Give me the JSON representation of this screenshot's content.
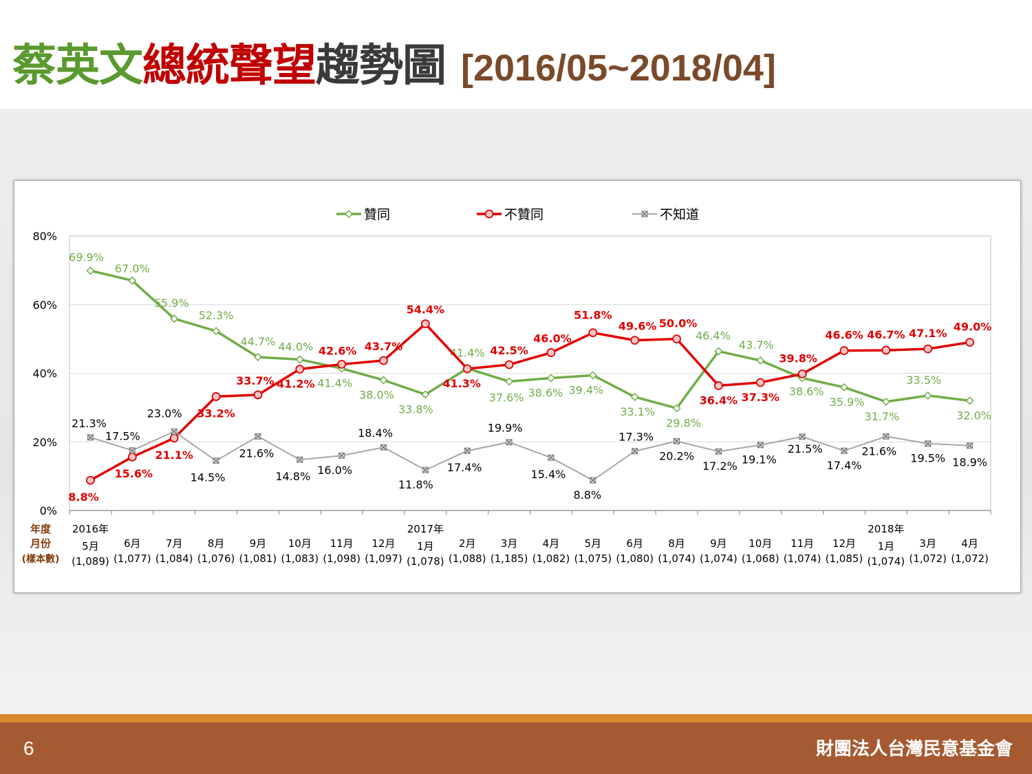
{
  "title": {
    "part1": "蔡英文",
    "part2": "總統聲望",
    "part3": "趨勢圖",
    "range": "[2016/05~2018/04]"
  },
  "colors": {
    "title_green": "#5a9a2e",
    "title_red": "#c00000",
    "title_dark": "#3a3a3a",
    "approve": "#70ad47",
    "disapprove": "#e00000",
    "unknown": "#a6a6a6",
    "footer": "#a65a32"
  },
  "footer": {
    "page": "6",
    "org": "財團法人台灣民意基金會"
  },
  "chart_data": {
    "type": "line",
    "ylim": [
      0,
      80
    ],
    "yticks": [
      "0%",
      "20%",
      "40%",
      "60%",
      "80%"
    ],
    "grid": true,
    "legend_position": "top",
    "row_labels": [
      "年度",
      "月份",
      "(樣本數)"
    ],
    "categories": [
      {
        "year": "2016年",
        "month": "5月",
        "n": "(1,089)"
      },
      {
        "year": "",
        "month": "6月",
        "n": "(1,077)"
      },
      {
        "year": "",
        "month": "7月",
        "n": "(1,084)"
      },
      {
        "year": "",
        "month": "8月",
        "n": "(1,076)"
      },
      {
        "year": "",
        "month": "9月",
        "n": "(1,081)"
      },
      {
        "year": "",
        "month": "10月",
        "n": "(1,083)"
      },
      {
        "year": "",
        "month": "11月",
        "n": "(1,098)"
      },
      {
        "year": "",
        "month": "12月",
        "n": "(1,097)"
      },
      {
        "year": "2017年",
        "month": "1月",
        "n": "(1,078)"
      },
      {
        "year": "",
        "month": "2月",
        "n": "(1,088)"
      },
      {
        "year": "",
        "month": "3月",
        "n": "(1,185)"
      },
      {
        "year": "",
        "month": "4月",
        "n": "(1,082)"
      },
      {
        "year": "",
        "month": "5月",
        "n": "(1,075)"
      },
      {
        "year": "",
        "month": "6月",
        "n": "(1,080)"
      },
      {
        "year": "",
        "month": "8月",
        "n": "(1,074)"
      },
      {
        "year": "",
        "month": "9月",
        "n": "(1,074)"
      },
      {
        "year": "",
        "month": "10月",
        "n": "(1,068)"
      },
      {
        "year": "",
        "month": "11月",
        "n": "(1,074)"
      },
      {
        "year": "",
        "month": "12月",
        "n": "(1,085)"
      },
      {
        "year": "2018年",
        "month": "1月",
        "n": "(1,074)"
      },
      {
        "year": "",
        "month": "3月",
        "n": "(1,072)"
      },
      {
        "year": "",
        "month": "4月",
        "n": "(1,072)"
      }
    ],
    "series": [
      {
        "name": "贊同",
        "color": "#70ad47",
        "marker": "diamond",
        "values": [
          69.9,
          67.0,
          55.9,
          52.3,
          44.7,
          44.0,
          41.4,
          38.0,
          33.8,
          41.4,
          37.6,
          38.6,
          39.4,
          33.1,
          29.8,
          46.4,
          43.7,
          38.6,
          35.9,
          31.7,
          33.5,
          32.0
        ],
        "labels": [
          "69.9%",
          "67.0%",
          "55.9%",
          "52.3%",
          "44.7%",
          "44.0%",
          "41.4%",
          "38.0%",
          "33.8%",
          "41.4%",
          "37.6%",
          "38.6%",
          "39.4%",
          "33.1%",
          "29.8%",
          "46.4%",
          "43.7%",
          "38.6%",
          "35.9%",
          "31.7%",
          "33.5%",
          "32.0%"
        ]
      },
      {
        "name": "不贊同",
        "color": "#e00000",
        "marker": "circle",
        "values": [
          8.8,
          15.6,
          21.1,
          33.2,
          33.7,
          41.2,
          42.6,
          43.7,
          54.4,
          41.3,
          42.5,
          46.0,
          51.8,
          49.6,
          50.0,
          36.4,
          37.3,
          39.8,
          46.6,
          46.7,
          47.1,
          49.0
        ],
        "labels": [
          "8.8%",
          "15.6%",
          "21.1%",
          "33.2%",
          "33.7%",
          "41.2%",
          "42.6%",
          "43.7%",
          "54.4%",
          "41.3%",
          "42.5%",
          "46.0%",
          "51.8%",
          "49.6%",
          "50.0%",
          "36.4%",
          "37.3%",
          "39.8%",
          "46.6%",
          "46.7%",
          "47.1%",
          "49.0%"
        ]
      },
      {
        "name": "不知道",
        "color": "#a6a6a6",
        "marker": "square-x",
        "values": [
          21.3,
          17.5,
          23.0,
          14.5,
          21.6,
          14.8,
          16.0,
          18.4,
          11.8,
          17.4,
          19.9,
          15.4,
          8.8,
          17.3,
          20.2,
          17.2,
          19.1,
          21.5,
          17.4,
          21.6,
          19.5,
          18.9
        ],
        "labels": [
          "21.3%",
          "17.5%",
          "23.0%",
          "14.5%",
          "21.6%",
          "14.8%",
          "16.0%",
          "18.4%",
          "11.8%",
          "17.4%",
          "19.9%",
          "15.4%",
          "8.8%",
          "17.3%",
          "20.2%",
          "17.2%",
          "19.1%",
          "21.5%",
          "17.4%",
          "21.6%",
          "19.5%",
          "18.9%"
        ]
      }
    ]
  }
}
